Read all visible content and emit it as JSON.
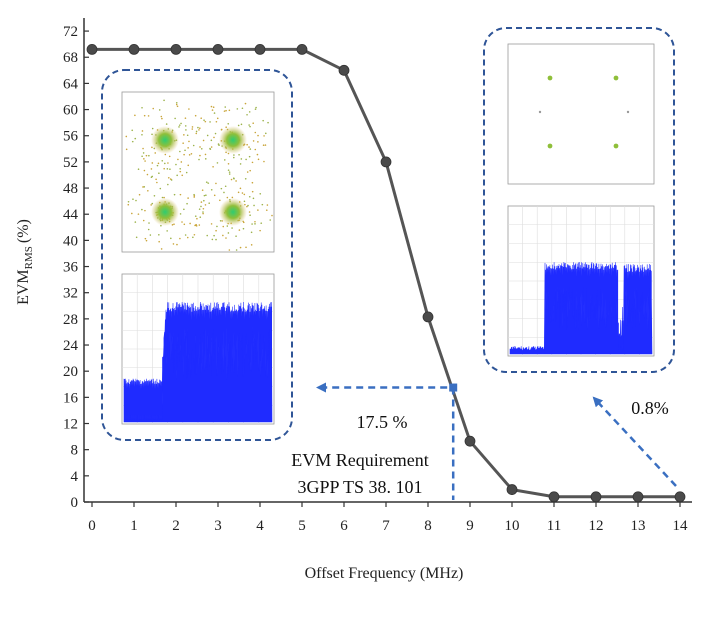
{
  "chart_data": {
    "type": "line",
    "title": "",
    "xlabel": "Offset Frequency (MHz)",
    "ylabel_main": "EVM",
    "ylabel_sub": "RMS",
    "ylabel_unit": "(%)",
    "xlim": [
      0,
      14
    ],
    "ylim": [
      0,
      74
    ],
    "x_ticks": [
      0,
      1,
      2,
      3,
      4,
      5,
      6,
      7,
      8,
      9,
      10,
      11,
      12,
      13,
      14
    ],
    "y_ticks": [
      0,
      4,
      8,
      12,
      16,
      20,
      24,
      28,
      32,
      36,
      40,
      44,
      48,
      52,
      56,
      60,
      64,
      68,
      72
    ],
    "grid": false,
    "series": [
      {
        "x": [
          0,
          1,
          2,
          3,
          4,
          5,
          6,
          7,
          8,
          9,
          10,
          11,
          12,
          13,
          14
        ],
        "y": [
          69.2,
          69.2,
          69.2,
          69.2,
          69.2,
          69.2,
          66.0,
          52.0,
          28.3,
          9.3,
          1.9,
          0.8,
          0.8,
          0.8,
          0.8
        ],
        "color": "#555555"
      }
    ],
    "requirement_point": {
      "x": 8.6,
      "y": 17.5
    },
    "annotations": {
      "requirement_value": "17.5 %",
      "requirement_line1": "EVM Requirement",
      "requirement_line2": "3GPP TS 38. 101",
      "min_value": "0.8%"
    },
    "colors": {
      "line": "#555555",
      "annotation": "#3a6fc1",
      "inset_border": "#2f5597",
      "spectrum": "#1f2bff"
    }
  }
}
